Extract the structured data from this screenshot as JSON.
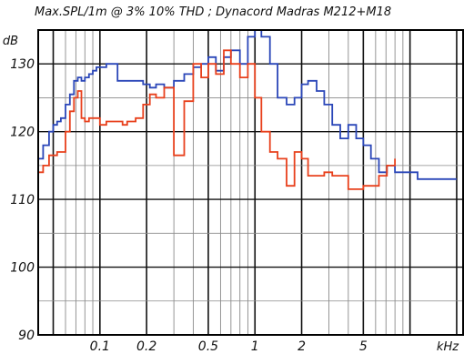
{
  "chart_data": {
    "type": "line",
    "title": "Max.SPL/1m @ 3% 10% THD ; Dynacord Madras M212+M18",
    "ylabel": "dB",
    "xlabel": "kHz",
    "x_scale": "log",
    "xlim": [
      0.04,
      22
    ],
    "ylim": [
      90,
      135
    ],
    "grid": true,
    "y_ticks": [
      90,
      100,
      110,
      120,
      130
    ],
    "y_tick_labels": [
      "90",
      "100",
      "110",
      "120",
      "130"
    ],
    "x_ticks": [
      0.1,
      0.2,
      0.5,
      1,
      2,
      5
    ],
    "x_tick_labels": [
      "0.1",
      "0.2",
      "0.5",
      "1",
      "2",
      "5"
    ],
    "series": [
      {
        "color": "#2a46b8",
        "x": [
          0.04,
          0.043,
          0.047,
          0.05,
          0.053,
          0.056,
          0.06,
          0.064,
          0.068,
          0.072,
          0.076,
          0.08,
          0.085,
          0.09,
          0.095,
          0.1,
          0.11,
          0.12,
          0.13,
          0.14,
          0.15,
          0.17,
          0.19,
          0.21,
          0.23,
          0.26,
          0.3,
          0.35,
          0.4,
          0.45,
          0.5,
          0.56,
          0.63,
          0.7,
          0.8,
          0.9,
          1.0,
          1.1,
          1.25,
          1.4,
          1.6,
          1.8,
          2.0,
          2.2,
          2.5,
          2.8,
          3.15,
          3.55,
          4.0,
          4.5,
          5.0,
          5.6,
          6.3,
          7.1,
          8.0,
          9.0,
          10.0,
          11.2,
          12.5,
          14.0,
          16.0,
          18.0,
          20.0
        ],
        "y": [
          116,
          118,
          120,
          121,
          121.5,
          122,
          124,
          125.5,
          127.5,
          128,
          127.5,
          128,
          128.5,
          129,
          129.5,
          129.5,
          130,
          130,
          127.5,
          127.5,
          127.5,
          127.5,
          127,
          126.5,
          127,
          126.5,
          127.5,
          128.5,
          129.5,
          130,
          131,
          129,
          131,
          132,
          130,
          134,
          135,
          134,
          130,
          125,
          124,
          125,
          127,
          127.5,
          126,
          124,
          121,
          119,
          121,
          119,
          118,
          116,
          114,
          115,
          114,
          114,
          114,
          113,
          113,
          113,
          113,
          113,
          113
        ]
      },
      {
        "color": "#e8401c",
        "x": [
          0.04,
          0.043,
          0.047,
          0.05,
          0.053,
          0.056,
          0.06,
          0.064,
          0.068,
          0.072,
          0.076,
          0.08,
          0.085,
          0.09,
          0.095,
          0.1,
          0.11,
          0.12,
          0.13,
          0.14,
          0.15,
          0.17,
          0.19,
          0.21,
          0.23,
          0.26,
          0.3,
          0.35,
          0.4,
          0.45,
          0.5,
          0.56,
          0.63,
          0.7,
          0.8,
          0.9,
          1.0,
          1.1,
          1.25,
          1.4,
          1.6,
          1.8,
          2.0,
          2.2,
          2.5,
          2.8,
          3.15,
          3.55,
          4.0,
          4.5,
          5.0,
          5.6,
          6.3,
          7.1,
          8.0
        ],
        "y": [
          114,
          115,
          116.5,
          116.5,
          117,
          117,
          120,
          123,
          125,
          126,
          122,
          121.5,
          122,
          122,
          122,
          121,
          121.5,
          121.5,
          121.5,
          121,
          121.5,
          122,
          124,
          125.5,
          125,
          126.5,
          116.5,
          124.5,
          130,
          128,
          130,
          128.5,
          132,
          130,
          128,
          130,
          125,
          120,
          117,
          116,
          112,
          117,
          116,
          113.5,
          113.5,
          114,
          113.5,
          113.5,
          111.5,
          111.5,
          112,
          112,
          113.5,
          115,
          116
        ]
      }
    ]
  }
}
